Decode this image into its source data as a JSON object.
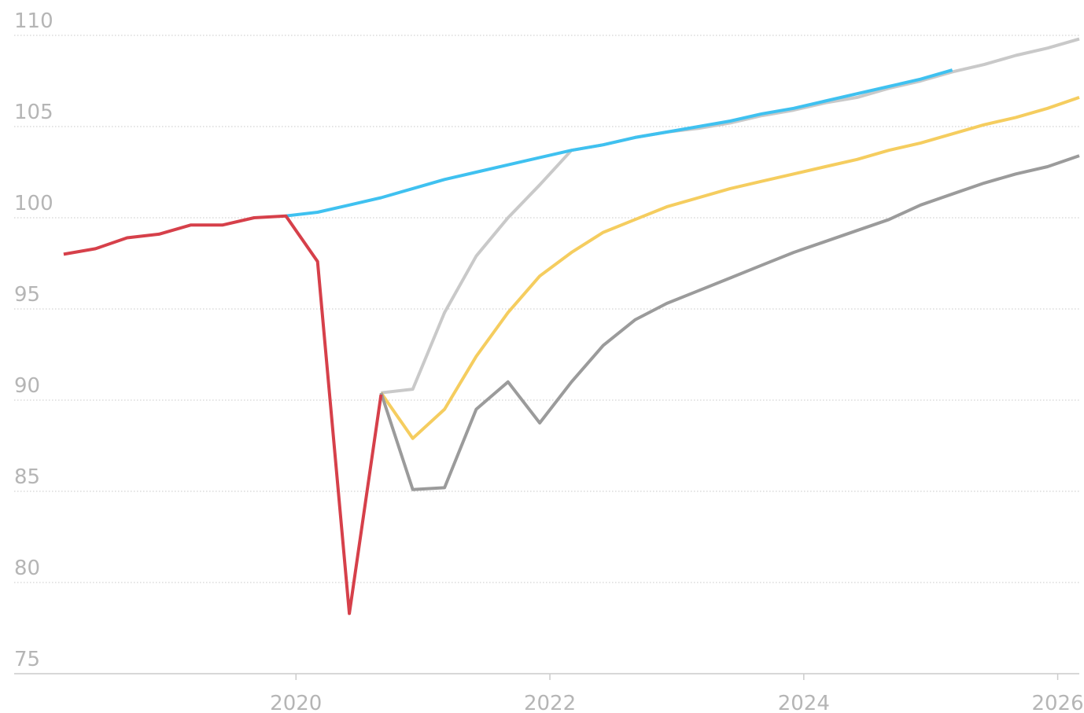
{
  "chart_data": {
    "type": "line",
    "xlim": [
      2017.78,
      2026.17
    ],
    "xticks": [
      2020,
      2022,
      2024,
      2026
    ],
    "ylim": [
      75,
      110
    ],
    "yticks": [
      75,
      80,
      85,
      90,
      95,
      100,
      105,
      110
    ],
    "grid": true,
    "series": [
      {
        "color": "#c9c9c9",
        "x": [
          2020.67,
          2020.92,
          2021.17,
          2021.42,
          2021.67,
          2021.92,
          2022.17,
          2022.42,
          2022.67,
          2022.92,
          2023.17,
          2023.42,
          2023.67,
          2023.92,
          2024.17,
          2024.42,
          2024.67,
          2024.92,
          2025.17,
          2025.42,
          2025.67,
          2025.92,
          2026.17
        ],
        "values": [
          90.4,
          90.6,
          94.8,
          97.9,
          100.0,
          101.8,
          103.7,
          104.0,
          104.4,
          104.7,
          104.9,
          105.2,
          105.6,
          105.9,
          106.3,
          106.6,
          107.1,
          107.5,
          108.0,
          108.4,
          108.9,
          109.3,
          109.8
        ]
      },
      {
        "color": "#f5cd5f",
        "x": [
          2020.67,
          2020.92,
          2021.17,
          2021.42,
          2021.67,
          2021.92,
          2022.17,
          2022.42,
          2022.67,
          2022.92,
          2023.17,
          2023.42,
          2023.67,
          2023.92,
          2024.17,
          2024.42,
          2024.67,
          2024.92,
          2025.17,
          2025.42,
          2025.67,
          2025.92,
          2026.17
        ],
        "values": [
          90.4,
          87.9,
          89.5,
          92.4,
          94.8,
          96.8,
          98.1,
          99.2,
          99.9,
          100.6,
          101.1,
          101.6,
          102.0,
          102.4,
          102.8,
          103.2,
          103.7,
          104.1,
          104.6,
          105.1,
          105.5,
          106.0,
          106.6
        ]
      },
      {
        "color": "#9b9b9b",
        "x": [
          2020.67,
          2020.92,
          2021.17,
          2021.42,
          2021.67,
          2021.92,
          2022.17,
          2022.42,
          2022.67,
          2022.92,
          2023.17,
          2023.42,
          2023.67,
          2023.92,
          2024.17,
          2024.42,
          2024.67,
          2024.92,
          2025.17,
          2025.42,
          2025.67,
          2025.92,
          2026.17
        ],
        "values": [
          90.4,
          85.1,
          85.2,
          89.5,
          91.0,
          88.75,
          91.0,
          93.0,
          94.4,
          95.3,
          96.0,
          96.7,
          97.4,
          98.1,
          98.7,
          99.3,
          99.9,
          100.7,
          101.3,
          101.9,
          102.4,
          102.8,
          103.4
        ]
      },
      {
        "color": "#3fc1f0",
        "x": [
          2019.92,
          2020.17,
          2020.42,
          2020.67,
          2020.92,
          2021.17,
          2021.42,
          2021.67,
          2021.92,
          2022.17,
          2022.42,
          2022.67,
          2022.92,
          2023.17,
          2023.42,
          2023.67,
          2023.92,
          2024.17,
          2024.42,
          2024.67,
          2024.92,
          2025.17
        ],
        "values": [
          100.1,
          100.3,
          100.7,
          101.1,
          101.6,
          102.1,
          102.5,
          102.9,
          103.3,
          103.7,
          104.0,
          104.4,
          104.7,
          105.0,
          105.3,
          105.7,
          106.0,
          106.4,
          106.8,
          107.2,
          107.6,
          108.1
        ]
      },
      {
        "color": "#d6404a",
        "x": [
          2018.17,
          2018.42,
          2018.67,
          2018.92,
          2019.17,
          2019.42,
          2019.67,
          2019.92,
          2020.17,
          2020.42,
          2020.67
        ],
        "values": [
          98.0,
          98.3,
          98.9,
          99.1,
          99.6,
          99.6,
          100.0,
          100.1,
          97.6,
          78.3,
          90.3
        ]
      }
    ]
  }
}
